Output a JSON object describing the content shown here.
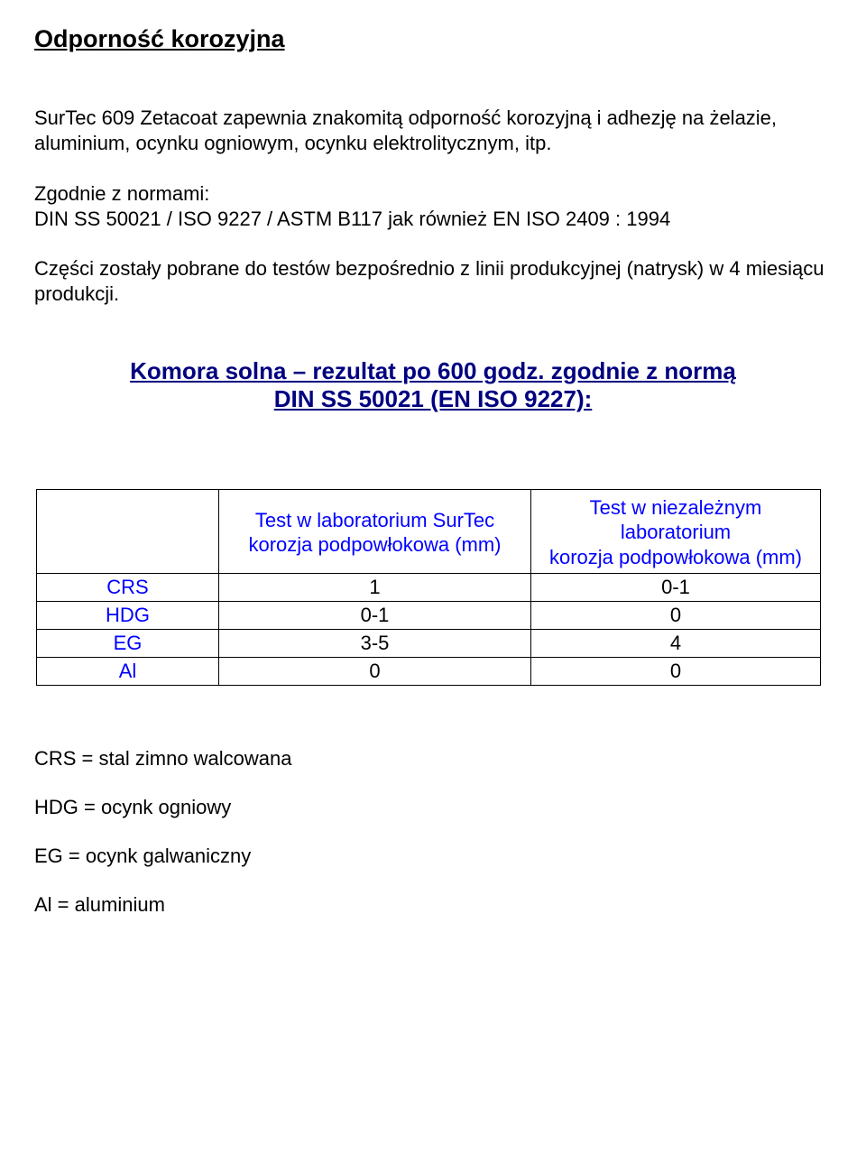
{
  "heading": "Odporność korozyjna",
  "para1": "SurTec 609 Zetacoat zapewnia znakomitą odporność korozyjną i adhezję na żelazie, aluminium, ocynku ogniowym, ocynku elektrolitycznym, itp.",
  "para2": "Zgodnie z normami:\nDIN SS 50021 / ISO 9227 / ASTM B117 jak również  EN ISO 2409 : 1994",
  "para3": "Części zostały pobrane do testów bezpośrednio z linii produkcyjnej (natrysk) w 4 miesiącu produkcji.",
  "subhead_line1": "Komora solna – rezultat po 600 godz. zgodnie z normą ",
  "subhead_line2": "DIN SS 50021 (EN ISO 9227):",
  "subhead_color": "#000080",
  "table": {
    "header_color": "#0000ff",
    "rowlabel_color": "#0000ff",
    "columns": [
      "",
      "Test w  laboratorium SurTec\nkorozja podpowłokowa (mm)",
      "Test w niezależnym laboratorium\nkorozja podpowłokowa (mm)"
    ],
    "rows": [
      {
        "label": "CRS",
        "c1": "1",
        "c2": "0-1"
      },
      {
        "label": "HDG",
        "c1": "0-1",
        "c2": "0"
      },
      {
        "label": "EG",
        "c1": "3-5",
        "c2": "4"
      },
      {
        "label": "Al",
        "c1": "0",
        "c2": "0"
      }
    ]
  },
  "legend": [
    "CRS = stal zimno walcowana",
    "HDG = ocynk ogniowy",
    "EG = ocynk galwaniczny",
    "Al = aluminium"
  ]
}
